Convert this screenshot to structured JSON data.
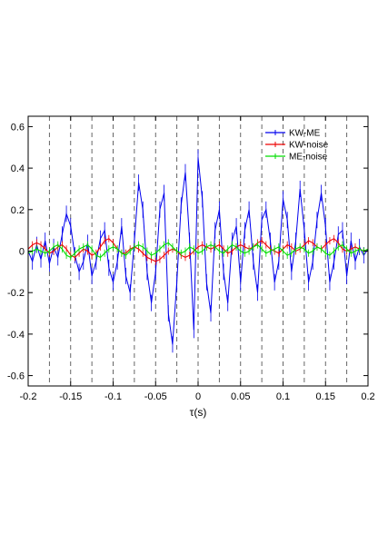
{
  "chart_data": {
    "type": "line",
    "title": "",
    "xlabel": "τ(s)",
    "ylabel": "",
    "xlim": [
      -0.2,
      0.2
    ],
    "ylim": [
      -0.65,
      0.65
    ],
    "x_ticks": [
      -0.2,
      -0.15,
      -0.1,
      -0.05,
      0,
      0.05,
      0.1,
      0.15,
      0.2
    ],
    "x_tick_labels": [
      "-0.2",
      "-0.15",
      "-0.1",
      "-0.05",
      "0",
      "0.05",
      "0.1",
      "0.15",
      "0.2"
    ],
    "y_ticks": [
      -0.6,
      -0.4,
      -0.2,
      0,
      0.2,
      0.4,
      0.6
    ],
    "y_tick_labels": [
      "-0.6",
      "-0.4",
      "-0.2",
      "0",
      "0.2",
      "0.4",
      "0.6"
    ],
    "vertical_dashed_lines": [
      -0.175,
      -0.15,
      -0.125,
      -0.1,
      -0.075,
      -0.05,
      -0.025,
      0,
      0.025,
      0.05,
      0.075,
      0.1,
      0.125,
      0.15,
      0.175
    ],
    "grid": false,
    "legend_position": "top-right",
    "series": [
      {
        "name": "KW-ME",
        "color": "#0000ee",
        "x": [
          -0.2,
          -0.195,
          -0.19,
          -0.185,
          -0.18,
          -0.175,
          -0.17,
          -0.165,
          -0.16,
          -0.155,
          -0.15,
          -0.145,
          -0.14,
          -0.135,
          -0.13,
          -0.125,
          -0.12,
          -0.115,
          -0.11,
          -0.105,
          -0.1,
          -0.095,
          -0.09,
          -0.085,
          -0.08,
          -0.075,
          -0.07,
          -0.065,
          -0.06,
          -0.055,
          -0.05,
          -0.045,
          -0.04,
          -0.035,
          -0.03,
          -0.025,
          -0.02,
          -0.015,
          -0.01,
          -0.005,
          0,
          0.005,
          0.01,
          0.015,
          0.02,
          0.025,
          0.03,
          0.035,
          0.04,
          0.045,
          0.05,
          0.055,
          0.06,
          0.065,
          0.07,
          0.075,
          0.08,
          0.085,
          0.09,
          0.095,
          0.1,
          0.105,
          0.11,
          0.115,
          0.12,
          0.125,
          0.13,
          0.135,
          0.14,
          0.145,
          0.15,
          0.155,
          0.16,
          0.165,
          0.17,
          0.175,
          0.18,
          0.185,
          0.19,
          0.195,
          0.2
        ],
        "y": [
          0.0,
          -0.05,
          0.03,
          -0.04,
          0.05,
          -0.06,
          0.02,
          -0.03,
          0.08,
          0.18,
          0.12,
          -0.02,
          -0.1,
          -0.05,
          0.04,
          -0.12,
          -0.05,
          0.06,
          0.1,
          -0.08,
          -0.15,
          -0.05,
          0.12,
          -0.12,
          -0.2,
          0.05,
          0.33,
          0.2,
          -0.1,
          -0.25,
          -0.1,
          0.2,
          0.28,
          -0.3,
          -0.45,
          -0.15,
          0.22,
          0.38,
          0.05,
          -0.38,
          0.45,
          0.25,
          -0.15,
          -0.3,
          0.1,
          0.2,
          -0.1,
          -0.25,
          0.05,
          0.12,
          -0.15,
          0.1,
          0.2,
          -0.05,
          -0.2,
          0.15,
          0.2,
          0.05,
          -0.15,
          -0.05,
          0.25,
          0.15,
          -0.1,
          0.05,
          0.3,
          0.1,
          -0.15,
          -0.05,
          0.15,
          0.28,
          0.12,
          -0.15,
          -0.05,
          0.08,
          0.1,
          -0.12,
          0.05,
          -0.05,
          0.02,
          -0.02,
          0.01
        ]
      },
      {
        "name": "KW-noise",
        "color": "#ee0000",
        "x": [
          -0.2,
          -0.195,
          -0.19,
          -0.185,
          -0.18,
          -0.175,
          -0.17,
          -0.165,
          -0.16,
          -0.155,
          -0.15,
          -0.145,
          -0.14,
          -0.135,
          -0.13,
          -0.125,
          -0.12,
          -0.115,
          -0.11,
          -0.105,
          -0.1,
          -0.095,
          -0.09,
          -0.085,
          -0.08,
          -0.075,
          -0.07,
          -0.065,
          -0.06,
          -0.055,
          -0.05,
          -0.045,
          -0.04,
          -0.035,
          -0.03,
          -0.025,
          -0.02,
          -0.015,
          -0.01,
          -0.005,
          0,
          0.005,
          0.01,
          0.015,
          0.02,
          0.025,
          0.03,
          0.035,
          0.04,
          0.045,
          0.05,
          0.055,
          0.06,
          0.065,
          0.07,
          0.075,
          0.08,
          0.085,
          0.09,
          0.095,
          0.1,
          0.105,
          0.11,
          0.115,
          0.12,
          0.125,
          0.13,
          0.135,
          0.14,
          0.145,
          0.15,
          0.155,
          0.16,
          0.165,
          0.17,
          0.175,
          0.18,
          0.185,
          0.19,
          0.195,
          0.2
        ],
        "y": [
          0.01,
          0.03,
          0.04,
          0.03,
          0.01,
          -0.01,
          0.0,
          0.02,
          0.03,
          0.01,
          -0.02,
          -0.03,
          -0.01,
          0.01,
          0.0,
          -0.02,
          -0.01,
          0.02,
          0.05,
          0.06,
          0.04,
          0.01,
          -0.01,
          -0.01,
          0.01,
          0.02,
          0.01,
          -0.01,
          -0.03,
          -0.04,
          -0.05,
          -0.04,
          -0.02,
          0.0,
          0.01,
          0.0,
          -0.02,
          -0.03,
          -0.02,
          0.0,
          0.02,
          0.03,
          0.02,
          0.01,
          0.02,
          0.03,
          0.01,
          -0.01,
          0.0,
          0.02,
          0.03,
          0.02,
          0.01,
          0.02,
          0.04,
          0.05,
          0.03,
          0.01,
          0.0,
          -0.01,
          0.01,
          0.03,
          0.02,
          0.0,
          0.01,
          0.03,
          0.05,
          0.04,
          0.02,
          0.01,
          0.03,
          0.05,
          0.06,
          0.04,
          0.01,
          0.0,
          0.01,
          0.02,
          0.01,
          0.0,
          0.01
        ]
      },
      {
        "name": "ME-noise",
        "color": "#00dd00",
        "x": [
          -0.2,
          -0.195,
          -0.19,
          -0.185,
          -0.18,
          -0.175,
          -0.17,
          -0.165,
          -0.16,
          -0.155,
          -0.15,
          -0.145,
          -0.14,
          -0.135,
          -0.13,
          -0.125,
          -0.12,
          -0.115,
          -0.11,
          -0.105,
          -0.1,
          -0.095,
          -0.09,
          -0.085,
          -0.08,
          -0.075,
          -0.07,
          -0.065,
          -0.06,
          -0.055,
          -0.05,
          -0.045,
          -0.04,
          -0.035,
          -0.03,
          -0.025,
          -0.02,
          -0.015,
          -0.01,
          -0.005,
          0,
          0.005,
          0.01,
          0.015,
          0.02,
          0.025,
          0.03,
          0.035,
          0.04,
          0.045,
          0.05,
          0.055,
          0.06,
          0.065,
          0.07,
          0.075,
          0.08,
          0.085,
          0.09,
          0.095,
          0.1,
          0.105,
          0.11,
          0.115,
          0.12,
          0.125,
          0.13,
          0.135,
          0.14,
          0.145,
          0.15,
          0.155,
          0.16,
          0.165,
          0.17,
          0.175,
          0.18,
          0.185,
          0.19,
          0.195,
          0.2
        ],
        "y": [
          -0.01,
          0.0,
          0.01,
          0.0,
          -0.01,
          0.0,
          0.02,
          0.03,
          0.01,
          -0.02,
          -0.03,
          -0.01,
          0.01,
          0.02,
          0.03,
          0.01,
          -0.02,
          -0.03,
          -0.01,
          0.01,
          0.02,
          0.01,
          -0.01,
          -0.02,
          0.0,
          0.02,
          0.03,
          0.02,
          0.0,
          -0.02,
          -0.01,
          0.01,
          0.03,
          0.04,
          0.02,
          0.0,
          -0.01,
          0.0,
          0.02,
          0.01,
          -0.01,
          0.0,
          0.02,
          0.03,
          0.02,
          0.0,
          -0.01,
          0.01,
          0.03,
          0.02,
          0.0,
          -0.01,
          0.0,
          0.02,
          0.03,
          0.01,
          -0.01,
          0.0,
          0.01,
          0.02,
          0.0,
          -0.02,
          -0.01,
          0.01,
          0.02,
          0.01,
          -0.01,
          0.0,
          0.02,
          0.01,
          -0.01,
          -0.02,
          0.0,
          0.02,
          0.03,
          0.01,
          -0.01,
          0.0,
          0.01,
          0.0,
          0.01
        ]
      }
    ]
  }
}
